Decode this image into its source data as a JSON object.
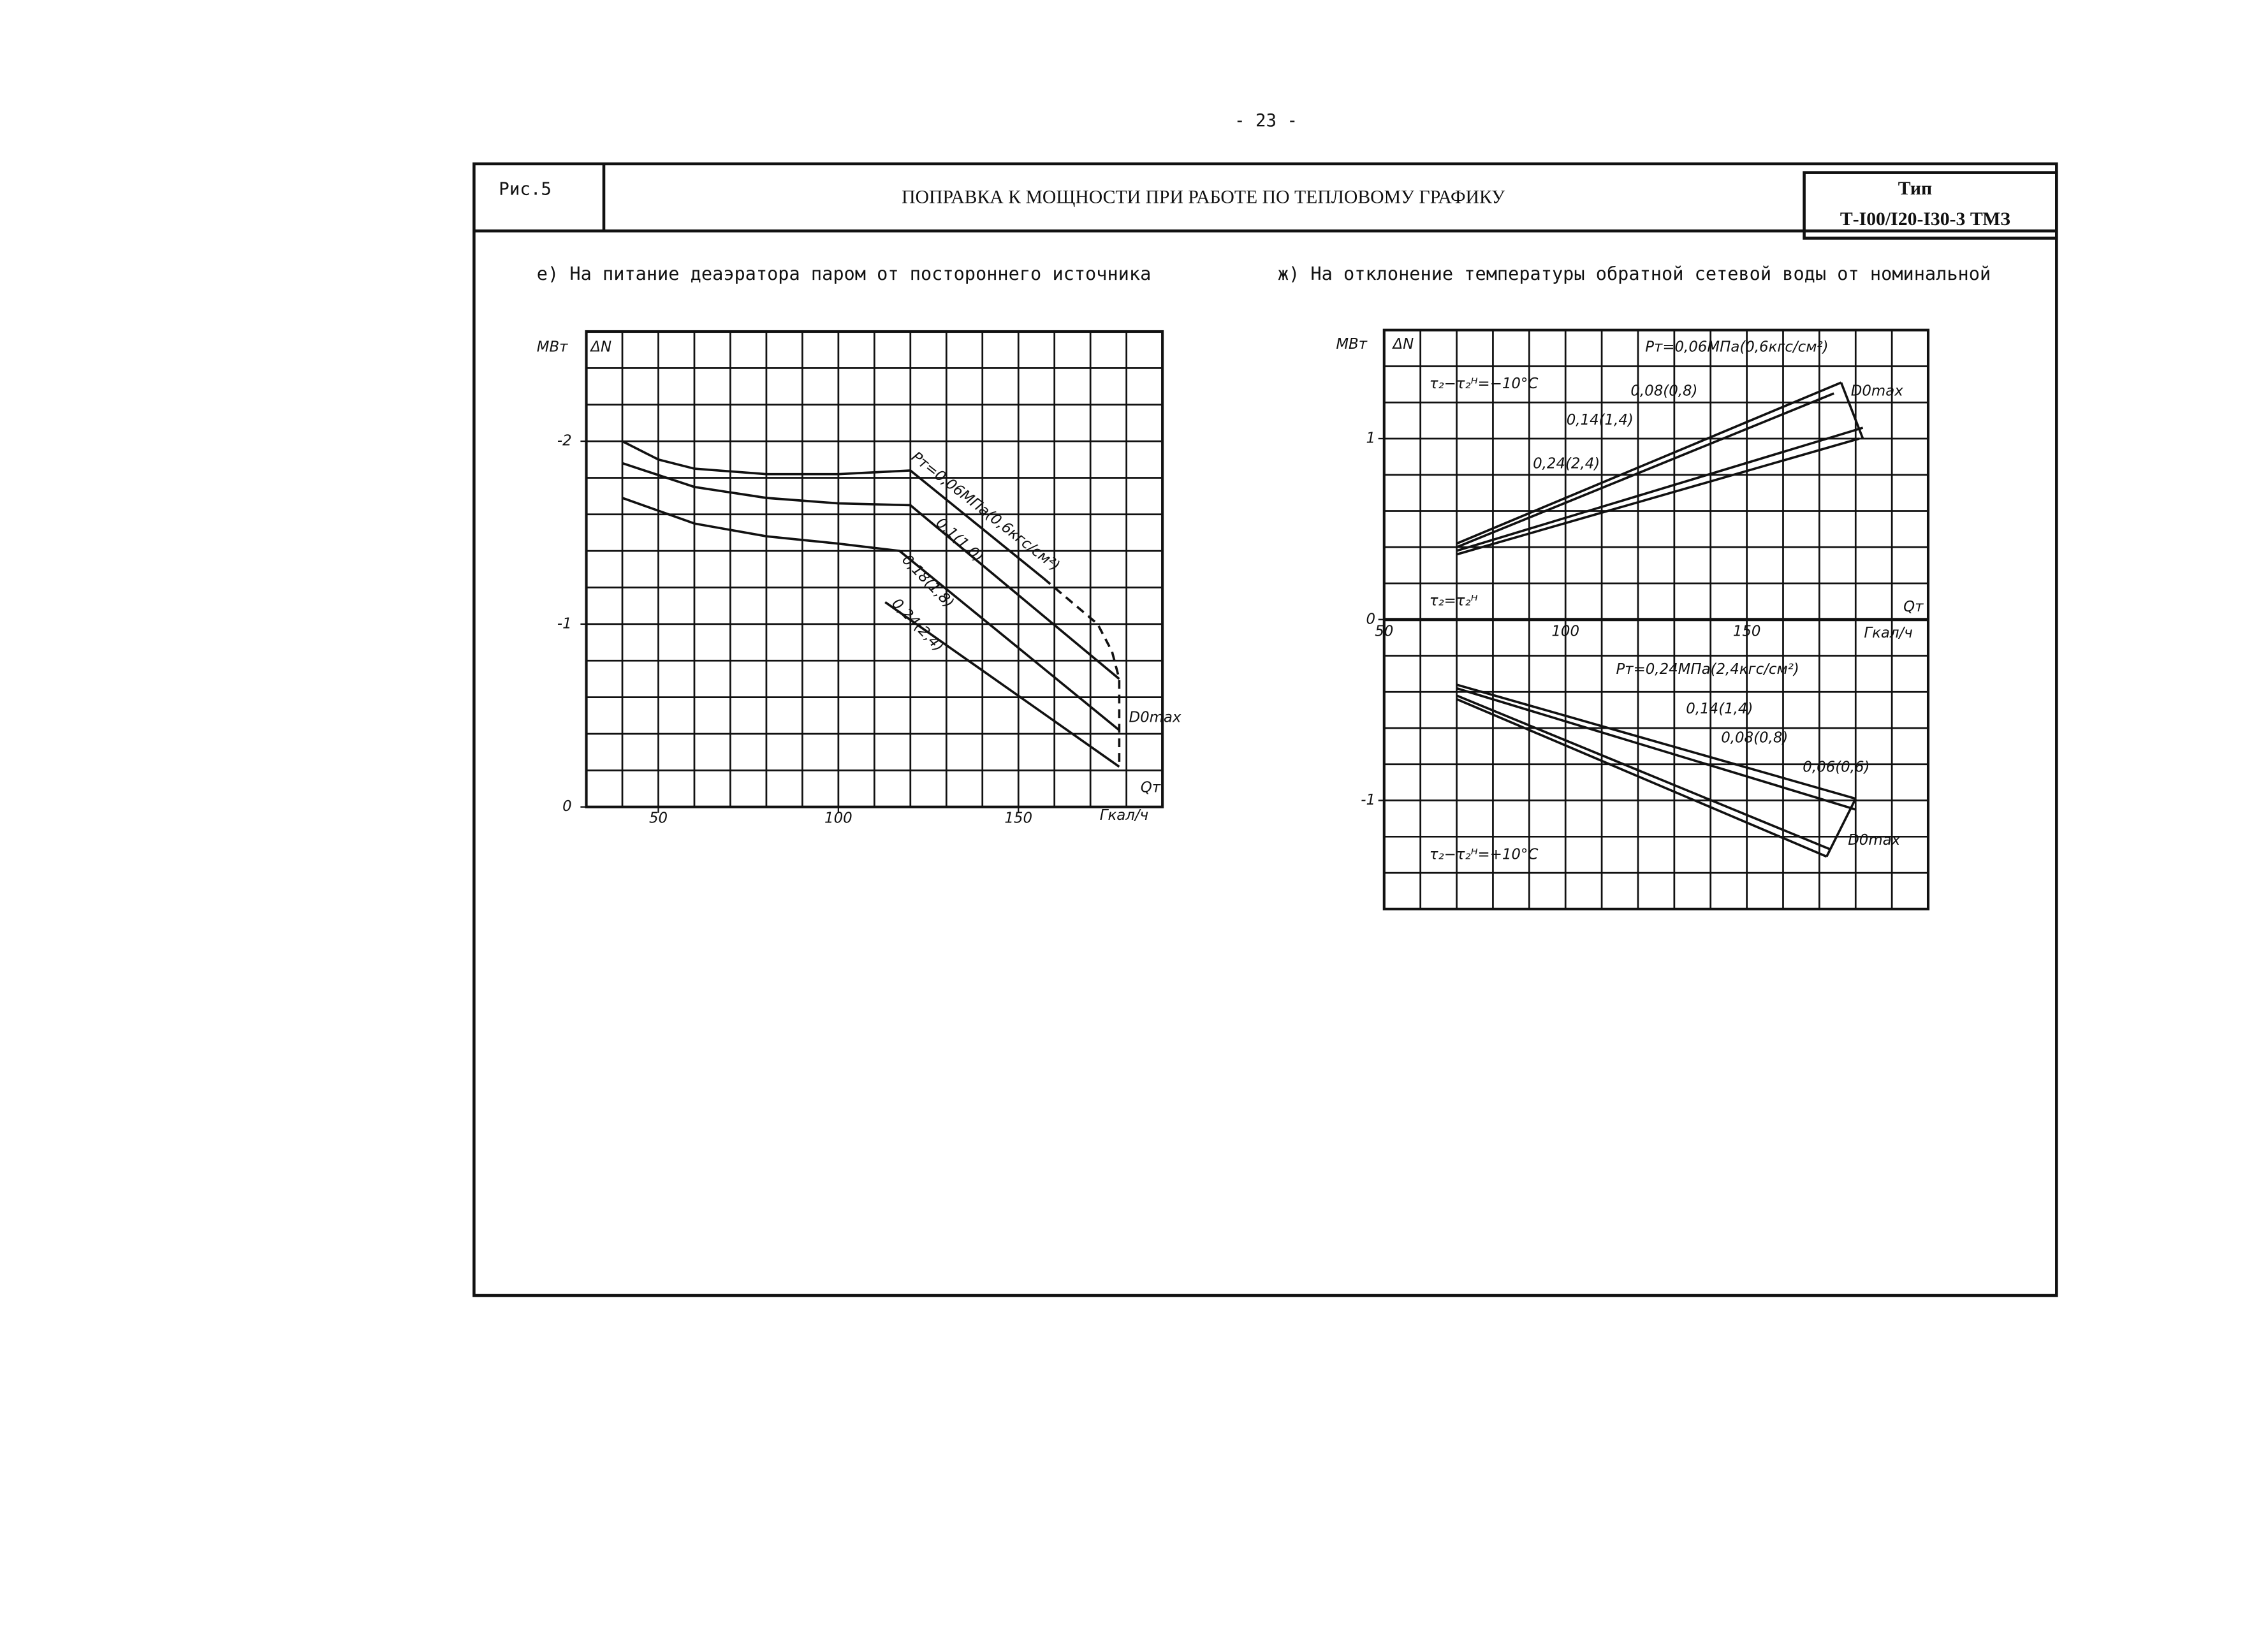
{
  "page_number": "- 23 -",
  "header": {
    "figure": "Рис.5",
    "title": "ПОПРАВКА К МОЩНОСТИ ПРИ РАБОТЕ ПО ТЕПЛОВОМУ ГРАФИКУ",
    "type_label": "Тип",
    "type": "Т-I00/I20-I30-3 ТМЗ"
  },
  "chart_data": [
    {
      "type": "line",
      "title": "е) На питание деаэратора паром от постороннего источника",
      "y_unit": "МВт",
      "y_label": "ΔN",
      "x_label": "Qт",
      "x_unit": "Гкал/ч",
      "xlim": [
        30,
        190
      ],
      "ylim": [
        0,
        -2.6
      ],
      "xticks": [
        50,
        100,
        150
      ],
      "yticks": [
        0,
        -1,
        -2
      ],
      "grid": true,
      "xgrid": [
        30,
        40,
        50,
        60,
        70,
        80,
        90,
        100,
        110,
        120,
        130,
        140,
        150,
        160,
        170,
        180,
        190
      ],
      "ygrid": [
        0,
        -0.2,
        -0.4,
        -0.6,
        -0.8,
        -1,
        -1.2,
        -1.4,
        -1.6,
        -1.8,
        -2,
        -2.2,
        -2.4,
        -2.6
      ],
      "series": [
        {
          "name": "Pт=0,06МПа(0,6кгс/см²)",
          "color": "#111",
          "x": [
            40,
            50,
            60,
            80,
            100,
            120,
            157
          ],
          "values": [
            -2.0,
            -1.9,
            -1.85,
            -1.82,
            -1.82,
            -1.84,
            -1.25
          ]
        },
        {
          "name": "0,1(1,0)",
          "color": "#111",
          "x": [
            40,
            60,
            80,
            100,
            120,
            178
          ],
          "values": [
            -1.88,
            -1.75,
            -1.69,
            -1.66,
            -1.65,
            -0.7
          ]
        },
        {
          "name": "0,18(1,8)",
          "color": "#111",
          "x": [
            40,
            60,
            80,
            100,
            117,
            178
          ],
          "values": [
            -1.69,
            -1.55,
            -1.48,
            -1.44,
            -1.4,
            -0.42
          ]
        },
        {
          "name": "0,24(2,4)",
          "color": "#111",
          "x": [
            113,
            178
          ],
          "values": [
            -1.12,
            -0.22
          ]
        },
        {
          "name": "D0max",
          "color": "#111",
          "dashed": true,
          "x": [
            157,
            172,
            176,
            178,
            178
          ],
          "values": [
            -1.25,
            -1.0,
            -0.85,
            -0.7,
            -0.22
          ]
        }
      ]
    },
    {
      "type": "line",
      "title": "ж) На отклонение температуры обратной сетевой воды от номинальной",
      "y_unit": "МВт",
      "y_label": "ΔN",
      "x_label": "Qт",
      "x_unit": "Гкал/ч",
      "xlim": [
        50,
        200
      ],
      "ylim": [
        -1.6,
        1.6
      ],
      "xticks": [
        50,
        100,
        150
      ],
      "yticks": [
        -1,
        0,
        1
      ],
      "grid": true,
      "xgrid": [
        50,
        60,
        70,
        80,
        90,
        100,
        110,
        120,
        130,
        140,
        150,
        160,
        170,
        180,
        190,
        200
      ],
      "ygrid": [
        -1.6,
        -1.4,
        -1.2,
        -1,
        -0.8,
        -0.6,
        -0.4,
        -0.2,
        0,
        0.2,
        0.4,
        0.6,
        0.8,
        1,
        1.2,
        1.4,
        1.6
      ],
      "annotations": [
        "τ₂−τ₂ᴴ=−10°C",
        "τ₂=τ₂ᴴ",
        "τ₂−τ₂ᴴ=+10°C"
      ],
      "series": [
        {
          "name": "Pт=0,06МПа(0,6кгс/см²)",
          "color": "#111",
          "x": [
            70,
            176
          ],
          "values": [
            0.42,
            1.31
          ]
        },
        {
          "name": "0,08(0,8)",
          "color": "#111",
          "x": [
            70,
            174
          ],
          "values": [
            0.4,
            1.25
          ]
        },
        {
          "name": "0,14(1,4)",
          "color": "#111",
          "x": [
            70,
            182
          ],
          "values": [
            0.38,
            1.06
          ]
        },
        {
          "name": "0,24(2,4)",
          "color": "#111",
          "x": [
            70,
            181
          ],
          "values": [
            0.36,
            1.0
          ]
        },
        {
          "name": "D0max",
          "color": "#111",
          "x": [
            176,
            182
          ],
          "values": [
            1.31,
            1.0
          ]
        },
        {
          "name": "Pт=0,24МПа(2,4кгс/см²)",
          "color": "#111",
          "x": [
            70,
            180
          ],
          "values": [
            -0.36,
            -0.99
          ]
        },
        {
          "name": "0,14(1,4)",
          "color": "#111",
          "x": [
            70,
            180
          ],
          "values": [
            -0.38,
            -1.05
          ]
        },
        {
          "name": "0,08(0,8)",
          "color": "#111",
          "x": [
            70,
            173
          ],
          "values": [
            -0.42,
            -1.27
          ]
        },
        {
          "name": "0,06(0,6)",
          "color": "#111",
          "x": [
            70,
            172
          ],
          "values": [
            -0.44,
            -1.31
          ]
        },
        {
          "name": "D0max",
          "color": "#111",
          "x": [
            172,
            180
          ],
          "values": [
            -1.31,
            -0.99
          ]
        }
      ]
    }
  ]
}
